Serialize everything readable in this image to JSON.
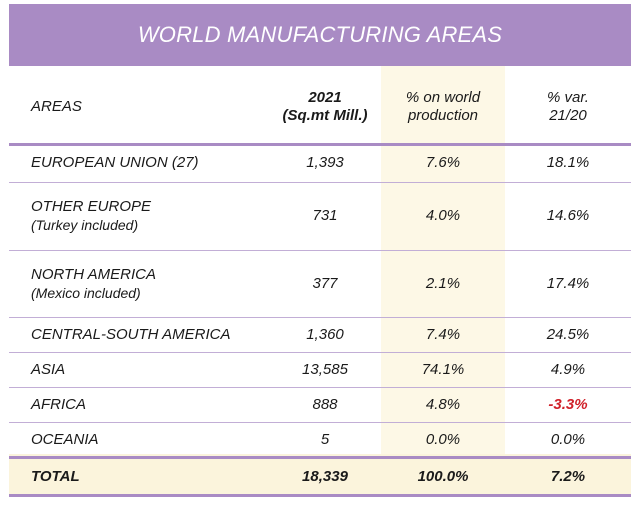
{
  "title": "WORLD MANUFACTURING AREAS",
  "header": {
    "areas": "AREAS",
    "year": "2021",
    "year_unit": "(Sq.mt Mill.)",
    "share_line1": "% on world",
    "share_line2": "production",
    "var_line1": "% var.",
    "var_line2": "21/20"
  },
  "rows": [
    {
      "area": "EUROPEAN UNION (27)",
      "note": "",
      "value": "1,393",
      "share": "7.6%",
      "var": "18.1%"
    },
    {
      "area": "OTHER EUROPE",
      "note": "(Turkey included)",
      "value": "731",
      "share": "4.0%",
      "var": "14.6%"
    },
    {
      "area": "NORTH AMERICA",
      "note": "(Mexico included)",
      "value": "377",
      "share": "2.1%",
      "var": "17.4%"
    },
    {
      "area": "CENTRAL-SOUTH AMERICA",
      "note": "",
      "value": "1,360",
      "share": "7.4%",
      "var": "24.5%"
    },
    {
      "area": "ASIA",
      "note": "",
      "value": "13,585",
      "share": "74.1%",
      "var": "4.9%"
    },
    {
      "area": "AFRICA",
      "note": "",
      "value": "888",
      "share": "4.8%",
      "var": "-3.3%"
    },
    {
      "area": "OCEANIA",
      "note": "",
      "value": "5",
      "share": "0.0%",
      "var": "0.0%"
    }
  ],
  "total": {
    "area": "TOTAL",
    "value": "18,339",
    "share": "100.0%",
    "var": "7.2%"
  },
  "colors": {
    "banner": "#a98bc4",
    "highlight_column": "#fdf8e6",
    "negative": "#d0212a"
  }
}
